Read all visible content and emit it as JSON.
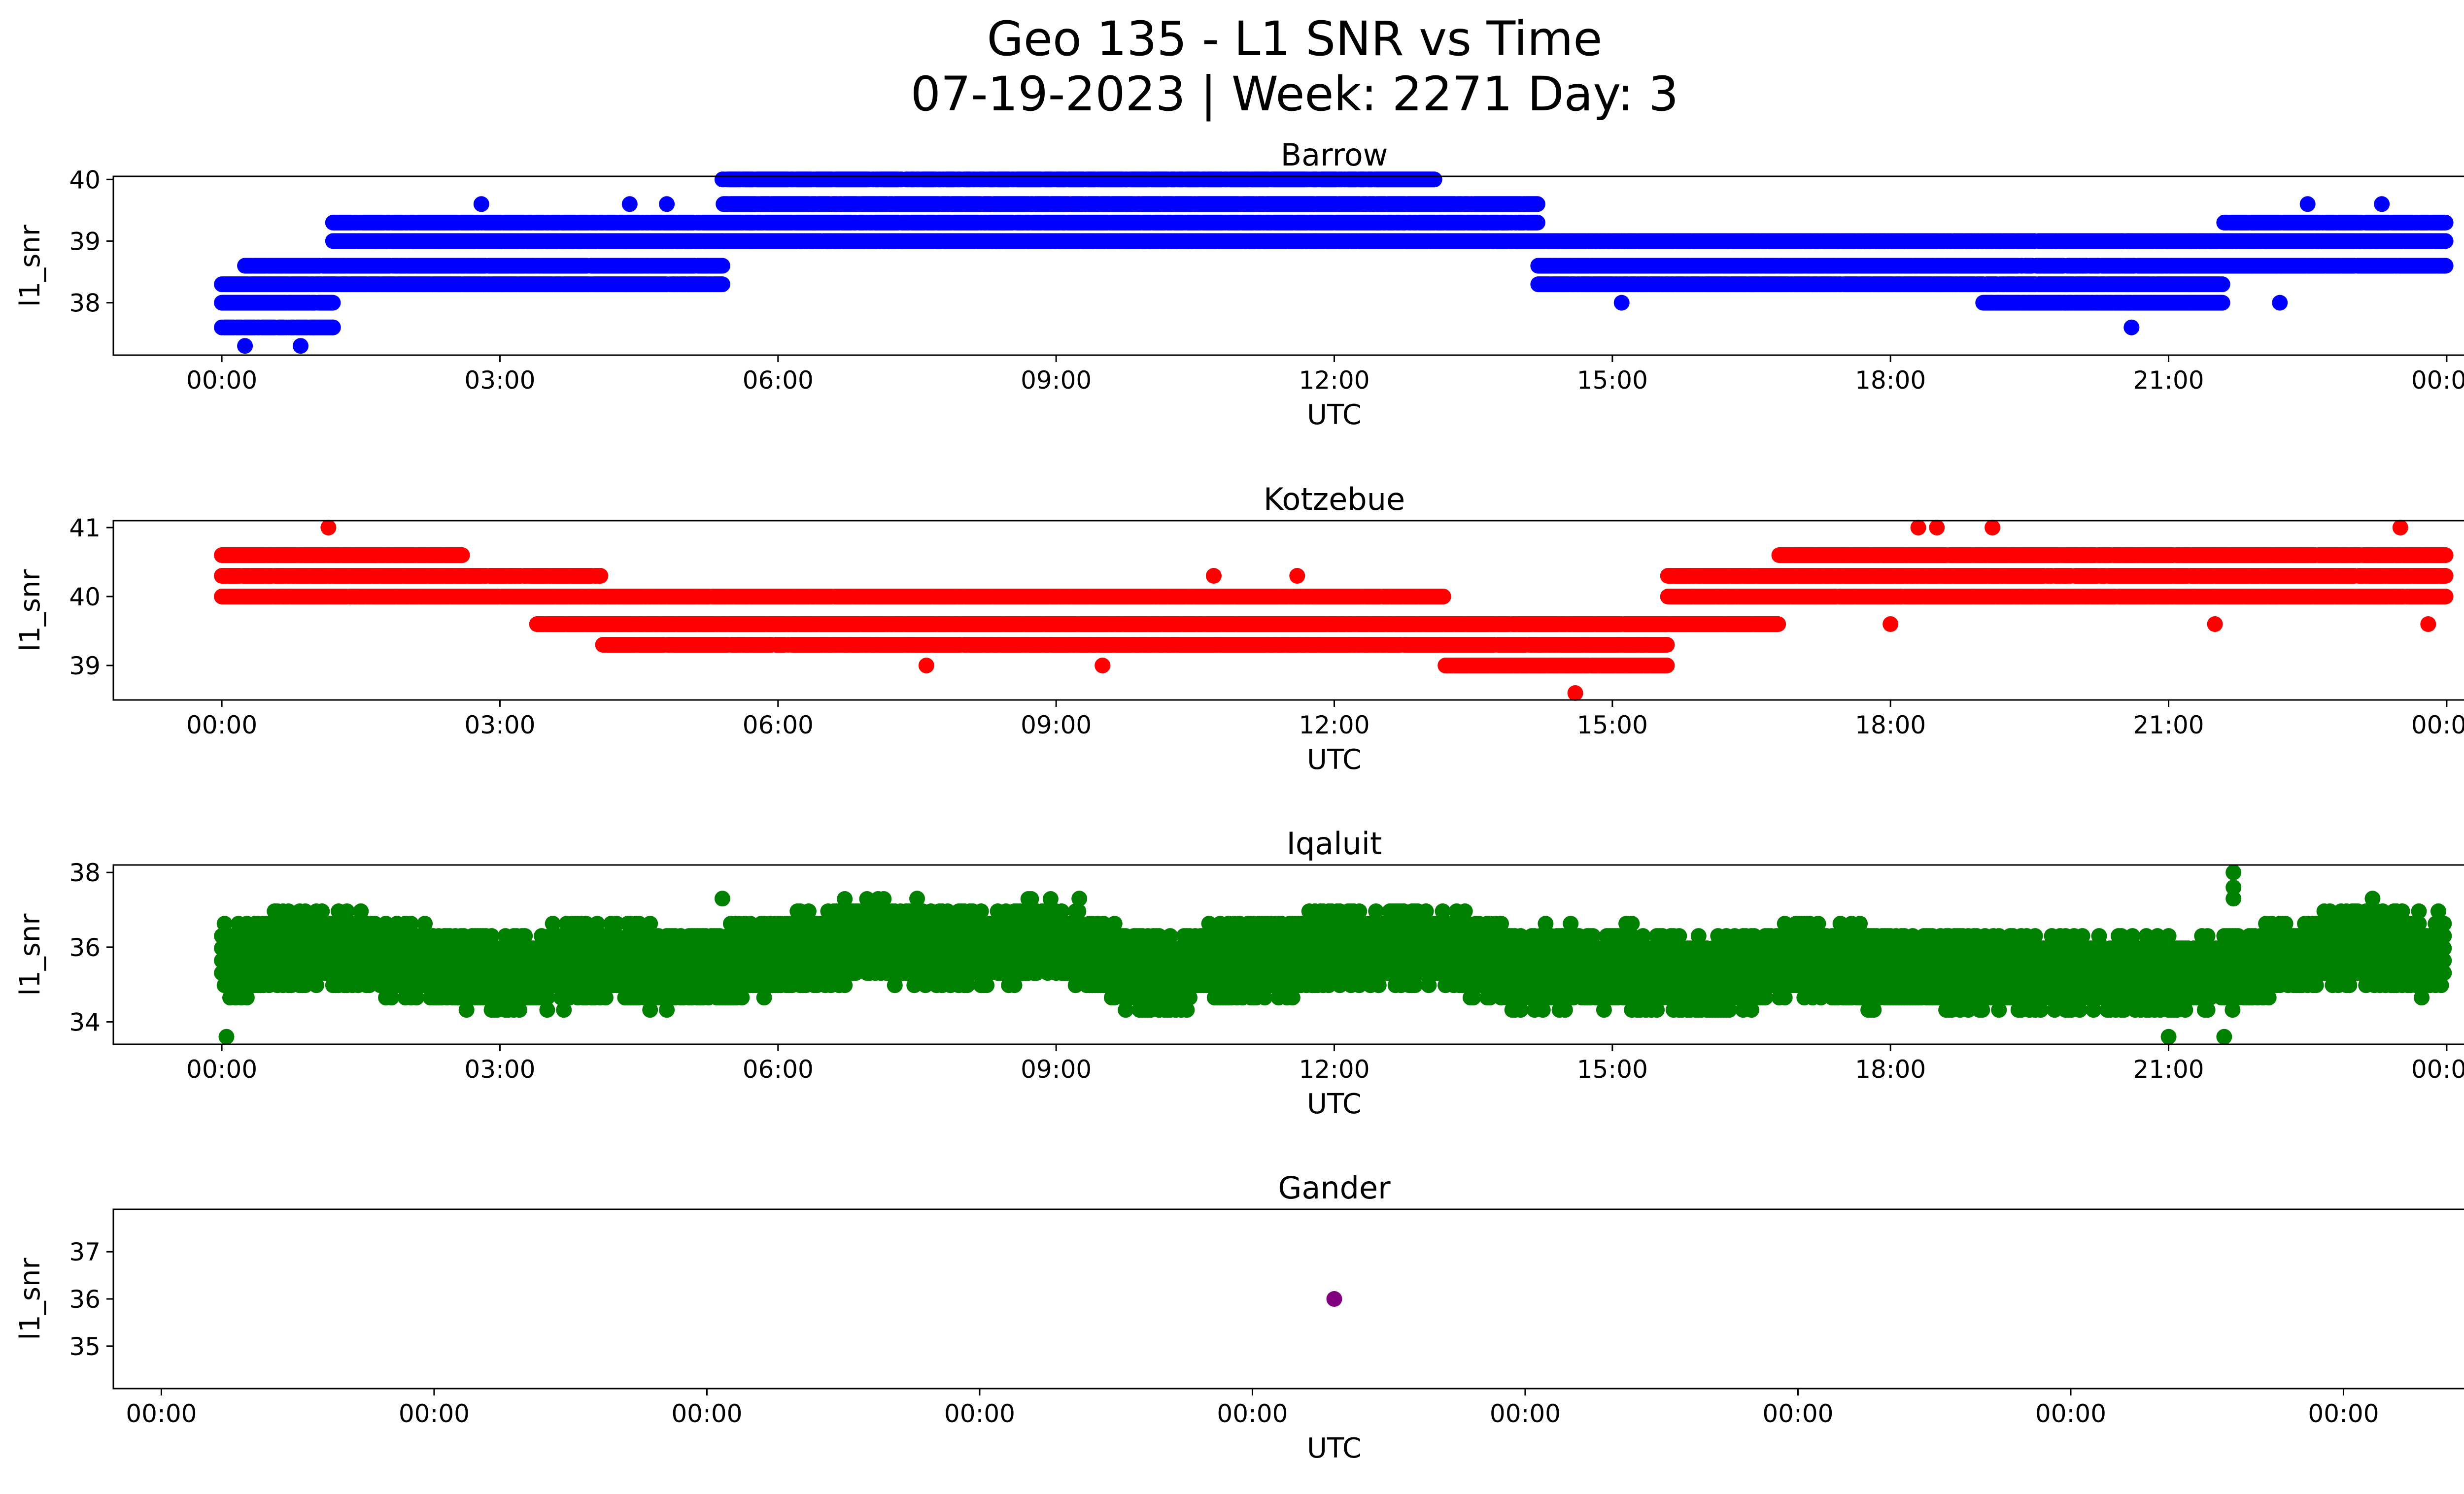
{
  "figure": {
    "title_line1": "Geo 135 - L1 SNR vs Time",
    "title_line2": "07-19-2023 | Week: 2271 Day: 3"
  },
  "chart_data": [
    {
      "type": "scatter",
      "title": "Barrow",
      "xlabel": "UTC",
      "ylabel": "l1_snr",
      "color": "#0000ff",
      "x_unit": "hours UTC",
      "xlim": [
        -1.17,
        25.17
      ],
      "xticks": [
        0,
        3,
        6,
        9,
        12,
        15,
        18,
        21,
        24
      ],
      "xtick_labels": [
        "00:00",
        "03:00",
        "06:00",
        "09:00",
        "12:00",
        "15:00",
        "18:00",
        "21:00",
        "00:00"
      ],
      "ylim": [
        37.15,
        40.05
      ],
      "yticks": [
        38,
        39,
        40
      ],
      "ytick_labels": [
        "38",
        "39",
        "40"
      ],
      "y_step": 0.33,
      "series": [
        {
          "segments": [
            {
              "x": [
                0.0,
                0.25
              ],
              "levels": [
                37.6,
                38.0,
                38.3
              ]
            },
            {
              "x": [
                0.25,
                1.2
              ],
              "levels": [
                37.6,
                38.0,
                38.3,
                38.6
              ]
            },
            {
              "x": [
                1.2,
                5.4
              ],
              "levels": [
                38.3,
                38.6,
                39.0,
                39.3
              ]
            },
            {
              "x": [
                5.4,
                13.1
              ],
              "levels": [
                39.0,
                39.3,
                39.6,
                40.0
              ]
            },
            {
              "x": [
                13.1,
                14.2
              ],
              "levels": [
                39.0,
                39.3,
                39.6
              ]
            },
            {
              "x": [
                14.2,
                19.0
              ],
              "levels": [
                38.3,
                38.6,
                39.0
              ]
            },
            {
              "x": [
                19.0,
                21.6
              ],
              "levels": [
                38.0,
                38.3,
                38.6,
                39.0
              ]
            },
            {
              "x": [
                21.6,
                24.0
              ],
              "levels": [
                38.6,
                39.0,
                39.3
              ]
            }
          ],
          "outliers": [
            [
              0.25,
              37.3
            ],
            [
              0.85,
              37.3
            ],
            [
              1.2,
              37.6
            ],
            [
              20.6,
              37.6
            ],
            [
              2.8,
              39.6
            ],
            [
              4.4,
              39.6
            ],
            [
              4.8,
              39.6
            ],
            [
              22.5,
              39.6
            ],
            [
              23.3,
              39.6
            ],
            [
              15.1,
              38.0
            ],
            [
              22.2,
              38.0
            ]
          ]
        }
      ]
    },
    {
      "type": "scatter",
      "title": "Kotzebue",
      "xlabel": "UTC",
      "ylabel": "l1_snr",
      "color": "#ff0000",
      "x_unit": "hours UTC",
      "xlim": [
        -1.17,
        25.17
      ],
      "xticks": [
        0,
        3,
        6,
        9,
        12,
        15,
        18,
        21,
        24
      ],
      "xtick_labels": [
        "00:00",
        "03:00",
        "06:00",
        "09:00",
        "12:00",
        "15:00",
        "18:00",
        "21:00",
        "00:00"
      ],
      "ylim": [
        38.5,
        41.1
      ],
      "yticks": [
        39,
        40,
        41
      ],
      "ytick_labels": [
        "39",
        "40",
        "41"
      ],
      "y_step": 0.33,
      "series": [
        {
          "segments": [
            {
              "x": [
                0.0,
                2.6
              ],
              "levels": [
                40.0,
                40.3,
                40.6
              ]
            },
            {
              "x": [
                2.6,
                3.4
              ],
              "levels": [
                40.0,
                40.3
              ]
            },
            {
              "x": [
                3.4,
                4.1
              ],
              "levels": [
                39.6,
                40.0,
                40.3
              ]
            },
            {
              "x": [
                4.1,
                5.4
              ],
              "levels": [
                39.3,
                39.6,
                40.0
              ]
            },
            {
              "x": [
                5.4,
                13.2
              ],
              "levels": [
                39.3,
                39.6,
                40.0
              ]
            },
            {
              "x": [
                13.2,
                15.6
              ],
              "levels": [
                39.0,
                39.3,
                39.6
              ]
            },
            {
              "x": [
                15.6,
                16.8
              ],
              "levels": [
                39.6,
                40.0,
                40.3
              ]
            },
            {
              "x": [
                16.8,
                24.0
              ],
              "levels": [
                40.0,
                40.3,
                40.6
              ]
            }
          ],
          "outliers": [
            [
              1.15,
              41.0
            ],
            [
              18.3,
              41.0
            ],
            [
              18.5,
              41.0
            ],
            [
              19.1,
              41.0
            ],
            [
              23.5,
              41.0
            ],
            [
              14.6,
              38.6
            ],
            [
              7.6,
              39.0
            ],
            [
              9.5,
              39.0
            ],
            [
              10.7,
              40.3
            ],
            [
              11.6,
              40.3
            ],
            [
              18.0,
              39.6
            ],
            [
              21.5,
              39.6
            ],
            [
              23.8,
              39.6
            ]
          ]
        }
      ]
    },
    {
      "type": "scatter",
      "title": "Iqaluit",
      "xlabel": "UTC",
      "ylabel": "l1_snr",
      "color": "#008000",
      "x_unit": "hours UTC",
      "xlim": [
        -1.17,
        25.17
      ],
      "xticks": [
        0,
        3,
        6,
        9,
        12,
        15,
        18,
        21,
        24
      ],
      "xtick_labels": [
        "00:00",
        "03:00",
        "06:00",
        "09:00",
        "12:00",
        "15:00",
        "18:00",
        "21:00",
        "00:00"
      ],
      "ylim": [
        33.4,
        38.2
      ],
      "yticks": [
        34,
        36,
        38
      ],
      "ytick_labels": [
        "34",
        "36",
        "38"
      ],
      "y_step": 0.33,
      "series": [
        {
          "baseline": [
            [
              0,
              35.7
            ],
            [
              1,
              36.0
            ],
            [
              2,
              35.6
            ],
            [
              3,
              35.3
            ],
            [
              4,
              35.6
            ],
            [
              5,
              35.4
            ],
            [
              6,
              35.8
            ],
            [
              7,
              36.2
            ],
            [
              8,
              36.0
            ],
            [
              9,
              36.2
            ],
            [
              10,
              35.2
            ],
            [
              11,
              35.6
            ],
            [
              12,
              36.0
            ],
            [
              13,
              36.1
            ],
            [
              14,
              35.4
            ],
            [
              15,
              35.5
            ],
            [
              16,
              35.2
            ],
            [
              17,
              35.6
            ],
            [
              18,
              35.4
            ],
            [
              19,
              35.4
            ],
            [
              20,
              35.3
            ],
            [
              21,
              35.2
            ],
            [
              22,
              35.6
            ],
            [
              23,
              36.0
            ],
            [
              24,
              35.8
            ]
          ],
          "spread": 1.5,
          "outliers": [
            [
              0.05,
              33.6
            ],
            [
              5.4,
              37.3
            ],
            [
              7.5,
              37.3
            ],
            [
              9.25,
              37.3
            ],
            [
              21.7,
              38.0
            ],
            [
              21.7,
              37.6
            ],
            [
              21.7,
              37.3
            ],
            [
              21.6,
              33.6
            ],
            [
              21.0,
              33.6
            ],
            [
              23.2,
              37.3
            ]
          ]
        }
      ]
    },
    {
      "type": "scatter",
      "title": "Gander",
      "xlabel": "UTC",
      "ylabel": "l1_snr",
      "color": "#800080",
      "x_unit": "relative position",
      "xlim": [
        -0.0595,
        1.0595
      ],
      "xticks": [
        -0.0375,
        0.0875,
        0.2125,
        0.3375,
        0.4625,
        0.5875,
        0.7125,
        0.8375,
        0.9625
      ],
      "xtick_labels": [
        "00:00",
        "00:00",
        "00:00",
        "00:00",
        "00:00",
        "00:00",
        "00:00",
        "00:00",
        "00:00"
      ],
      "ylim": [
        34.1,
        37.9
      ],
      "yticks": [
        35,
        36,
        37
      ],
      "ytick_labels": [
        "35",
        "36",
        "37"
      ],
      "series": [
        {
          "points": [
            [
              0.5,
              36.0
            ]
          ]
        }
      ]
    }
  ]
}
